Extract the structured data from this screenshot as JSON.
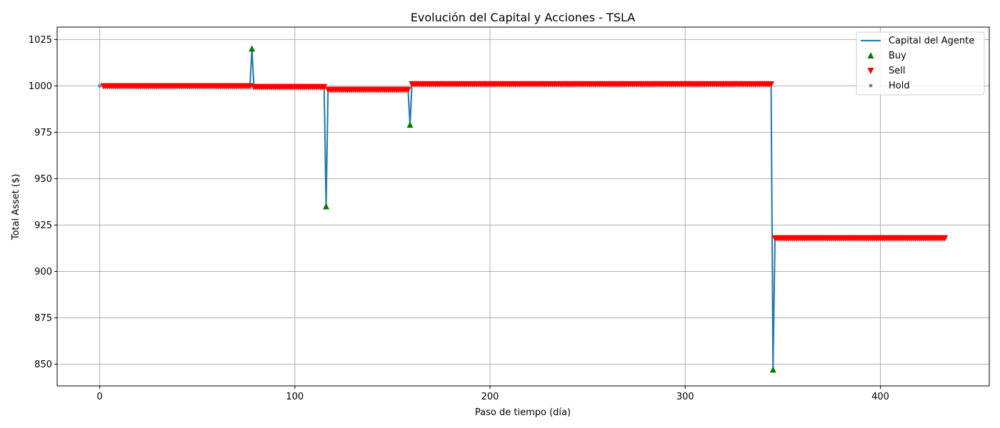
{
  "chart_data": {
    "type": "line",
    "title": "Evolución del Capital y Acciones - TSLA",
    "xlabel": "Paso de tiempo (día)",
    "ylabel": "Total Asset ($)",
    "xlim": [
      -21.8,
      455.8
    ],
    "ylim": [
      838.3,
      1031.7
    ],
    "xticks": [
      0,
      100,
      200,
      300,
      400
    ],
    "yticks": [
      850,
      875,
      900,
      925,
      950,
      975,
      1000,
      1025
    ],
    "grid": true,
    "legend_position": "top-right",
    "colors": {
      "line": "#1f77b4",
      "buy": "#008000",
      "sell": "#ff0000",
      "hold": "#808080",
      "grid": "#b0b0b0"
    },
    "series": [
      {
        "name": "Capital del Agente",
        "kind": "line",
        "points": [
          [
            0,
            1000
          ],
          [
            1,
            1000
          ],
          [
            77,
            1000
          ],
          [
            78,
            1020
          ],
          [
            79,
            1000
          ],
          [
            80,
            999.5
          ],
          [
            115,
            999.5
          ],
          [
            116,
            935
          ],
          [
            117,
            998
          ],
          [
            157,
            998
          ],
          [
            158,
            998
          ],
          [
            159,
            979
          ],
          [
            160,
            1001
          ],
          [
            344,
            1001
          ],
          [
            345,
            847
          ],
          [
            346,
            918
          ],
          [
            434,
            918
          ]
        ]
      },
      {
        "name": "Buy",
        "kind": "markers",
        "marker": "triangle-up",
        "points": [
          [
            78,
            1020
          ],
          [
            116,
            935
          ],
          [
            159,
            979
          ],
          [
            345,
            847
          ]
        ]
      },
      {
        "name": "Sell",
        "kind": "markers",
        "marker": "triangle-down",
        "segments": [
          {
            "from": 2,
            "to": 77,
            "value": 1000
          },
          {
            "from": 79,
            "to": 115,
            "value": 999.5
          },
          {
            "from": 117,
            "to": 158,
            "value": 998
          },
          {
            "from": 160,
            "to": 344,
            "value": 1001
          },
          {
            "from": 346,
            "to": 433,
            "value": 918
          }
        ]
      },
      {
        "name": "Hold",
        "kind": "markers",
        "marker": "dot",
        "points": [
          [
            0,
            1000
          ]
        ]
      }
    ]
  }
}
